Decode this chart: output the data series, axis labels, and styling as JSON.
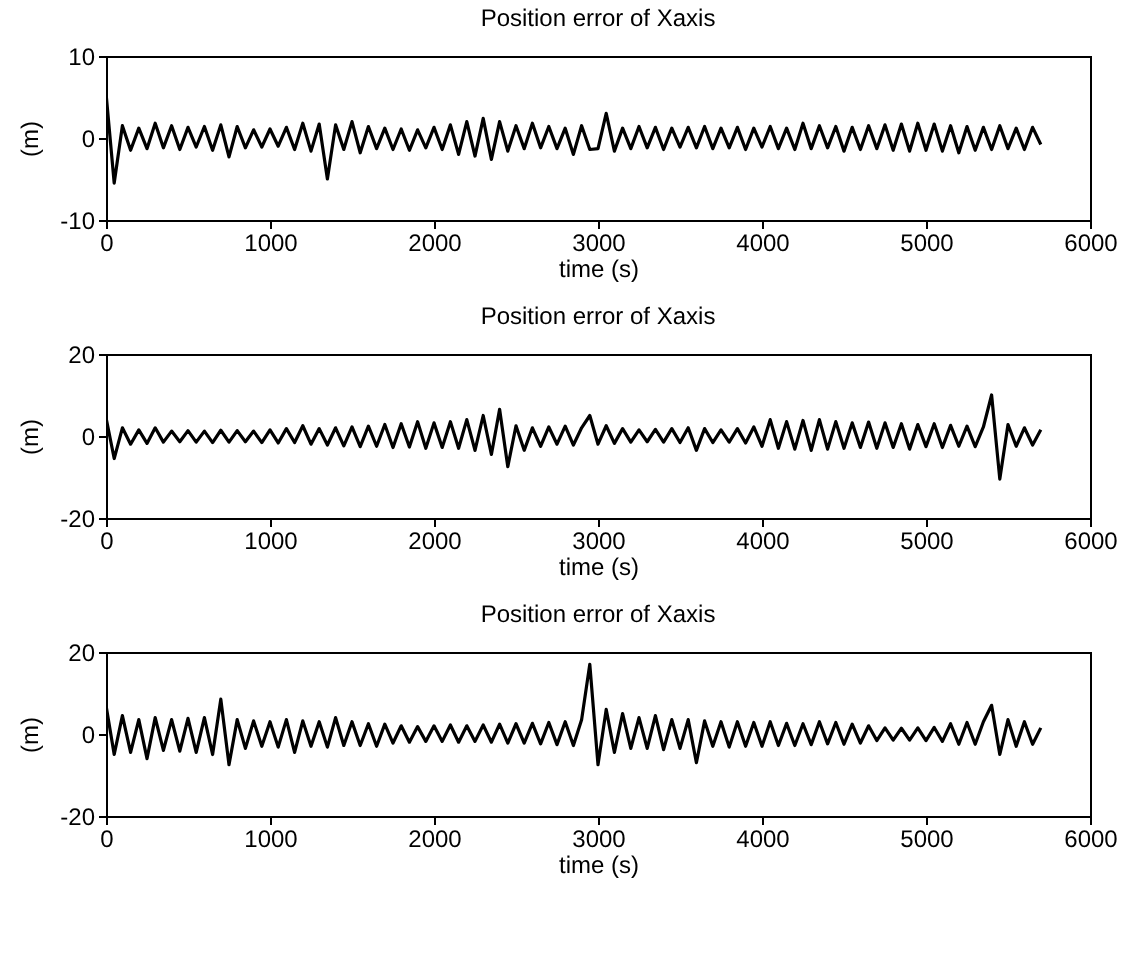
{
  "chart_data": [
    {
      "type": "line",
      "title": "Position error of Xaxis",
      "xlabel": "time (s)",
      "ylabel": "(m)",
      "xlim": [
        0,
        6000
      ],
      "xticks": [
        0,
        1000,
        2000,
        3000,
        4000,
        5000,
        6000
      ],
      "ylim": [
        -10,
        10
      ],
      "yticks": [
        -10,
        0,
        10
      ],
      "grid": false,
      "x": [
        0,
        50,
        100,
        150,
        200,
        250,
        300,
        350,
        400,
        450,
        500,
        550,
        600,
        650,
        700,
        750,
        800,
        850,
        900,
        950,
        1000,
        1050,
        1100,
        1150,
        1200,
        1250,
        1300,
        1350,
        1400,
        1450,
        1500,
        1550,
        1600,
        1650,
        1700,
        1750,
        1800,
        1850,
        1900,
        1950,
        2000,
        2050,
        2100,
        2150,
        2200,
        2250,
        2300,
        2350,
        2400,
        2450,
        2500,
        2550,
        2600,
        2650,
        2700,
        2750,
        2800,
        2850,
        2900,
        2950,
        3000,
        3050,
        3100,
        3150,
        3200,
        3250,
        3300,
        3350,
        3400,
        3450,
        3500,
        3550,
        3600,
        3650,
        3700,
        3750,
        3800,
        3850,
        3900,
        3950,
        4000,
        4050,
        4100,
        4150,
        4200,
        4250,
        4300,
        4350,
        4400,
        4450,
        4500,
        4550,
        4600,
        4650,
        4700,
        4750,
        4800,
        4850,
        4900,
        4950,
        5000,
        5050,
        5100,
        5150,
        5200,
        5250,
        5300,
        5350,
        5400,
        5450,
        5500,
        5550,
        5600,
        5650,
        5700
      ],
      "series": [
        {
          "color": "#000000",
          "values": [
            5.5,
            -5.5,
            1.5,
            -1.5,
            1.2,
            -1.3,
            1.8,
            -1.2,
            1.5,
            -1.4,
            1.3,
            -1.1,
            1.4,
            -1.5,
            1.6,
            -2.3,
            1.4,
            -1.2,
            1.0,
            -1.1,
            1.1,
            -1.0,
            1.3,
            -1.4,
            1.8,
            -1.6,
            1.7,
            -5.0,
            1.6,
            -1.4,
            2.0,
            -1.8,
            1.4,
            -1.3,
            1.2,
            -1.4,
            1.1,
            -1.5,
            1.0,
            -1.2,
            1.3,
            -1.4,
            1.6,
            -2.0,
            2.0,
            -2.2,
            2.4,
            -2.6,
            2.0,
            -1.6,
            1.5,
            -1.3,
            1.8,
            -1.2,
            1.4,
            -1.3,
            1.2,
            -2.0,
            1.5,
            -1.4,
            -1.3,
            3.0,
            -1.6,
            1.2,
            -1.3,
            1.4,
            -1.2,
            1.3,
            -1.4,
            1.2,
            -1.1,
            1.3,
            -1.2,
            1.4,
            -1.3,
            1.2,
            -1.2,
            1.3,
            -1.4,
            1.2,
            -1.1,
            1.4,
            -1.3,
            1.2,
            -1.4,
            1.8,
            -1.3,
            1.5,
            -1.2,
            1.4,
            -1.6,
            1.3,
            -1.4,
            1.5,
            -1.3,
            1.6,
            -1.5,
            1.7,
            -1.6,
            1.8,
            -1.5,
            1.7,
            -1.6,
            1.5,
            -1.8,
            1.4,
            -1.5,
            1.3,
            -1.4,
            1.5,
            -1.3,
            1.2,
            -1.4,
            1.3,
            -0.8
          ]
        }
      ]
    },
    {
      "type": "line",
      "title": "Position error of Xaxis",
      "xlabel": "time (s)",
      "ylabel": "(m)",
      "xlim": [
        0,
        6000
      ],
      "xticks": [
        0,
        1000,
        2000,
        3000,
        4000,
        5000,
        6000
      ],
      "ylim": [
        -20,
        20
      ],
      "yticks": [
        -20,
        0,
        20
      ],
      "grid": false,
      "x": [
        0,
        50,
        100,
        150,
        200,
        250,
        300,
        350,
        400,
        450,
        500,
        550,
        600,
        650,
        700,
        750,
        800,
        850,
        900,
        950,
        1000,
        1050,
        1100,
        1150,
        1200,
        1250,
        1300,
        1350,
        1400,
        1450,
        1500,
        1550,
        1600,
        1650,
        1700,
        1750,
        1800,
        1850,
        1900,
        1950,
        2000,
        2050,
        2100,
        2150,
        2200,
        2250,
        2300,
        2350,
        2400,
        2450,
        2500,
        2550,
        2600,
        2650,
        2700,
        2750,
        2800,
        2850,
        2900,
        2950,
        3000,
        3050,
        3100,
        3150,
        3200,
        3250,
        3300,
        3350,
        3400,
        3450,
        3500,
        3550,
        3600,
        3650,
        3700,
        3750,
        3800,
        3850,
        3900,
        3950,
        4000,
        4050,
        4100,
        4150,
        4200,
        4250,
        4300,
        4350,
        4400,
        4450,
        4500,
        4550,
        4600,
        4650,
        4700,
        4750,
        4800,
        4850,
        4900,
        4950,
        5000,
        5050,
        5100,
        5150,
        5200,
        5250,
        5300,
        5350,
        5400,
        5450,
        5500,
        5550,
        5600,
        5650,
        5700
      ],
      "series": [
        {
          "color": "#000000",
          "values": [
            4.5,
            -5.5,
            2.0,
            -2.0,
            1.5,
            -1.8,
            2.0,
            -1.5,
            1.2,
            -1.4,
            1.3,
            -1.5,
            1.2,
            -1.6,
            1.4,
            -1.5,
            1.3,
            -1.4,
            1.2,
            -1.6,
            1.5,
            -1.7,
            1.8,
            -1.6,
            2.5,
            -2.0,
            1.8,
            -2.2,
            2.0,
            -2.4,
            2.2,
            -2.6,
            2.4,
            -2.5,
            2.8,
            -2.8,
            3.0,
            -2.7,
            3.5,
            -3.0,
            3.2,
            -2.8,
            3.5,
            -3.0,
            4.0,
            -3.5,
            5.0,
            -4.5,
            6.5,
            -7.5,
            2.5,
            -3.5,
            2.0,
            -2.5,
            2.2,
            -2.0,
            2.4,
            -2.2,
            2.0,
            5.0,
            -2.0,
            2.5,
            -1.8,
            1.8,
            -1.5,
            1.5,
            -1.4,
            1.6,
            -1.5,
            1.8,
            -1.6,
            2.0,
            -3.5,
            1.8,
            -1.6,
            1.5,
            -1.5,
            1.8,
            -1.7,
            2.2,
            -2.5,
            4.0,
            -3.0,
            3.5,
            -3.2,
            3.8,
            -3.5,
            4.0,
            -3.2,
            3.5,
            -3.0,
            3.2,
            -2.8,
            3.4,
            -3.0,
            3.2,
            -2.8,
            3.0,
            -3.2,
            2.8,
            -2.6,
            3.0,
            -2.8,
            2.6,
            -2.5,
            2.4,
            -2.6,
            2.2,
            10.0,
            -10.5,
            2.8,
            -2.5,
            2.0,
            -2.2,
            1.5
          ]
        }
      ]
    },
    {
      "type": "line",
      "title": "Position error of Xaxis",
      "xlabel": "time (s)",
      "ylabel": "(m)",
      "xlim": [
        0,
        6000
      ],
      "xticks": [
        0,
        1000,
        2000,
        3000,
        4000,
        5000,
        6000
      ],
      "ylim": [
        -20,
        20
      ],
      "yticks": [
        -20,
        0,
        20
      ],
      "grid": false,
      "x": [
        0,
        50,
        100,
        150,
        200,
        250,
        300,
        350,
        400,
        450,
        500,
        550,
        600,
        650,
        700,
        750,
        800,
        850,
        900,
        950,
        1000,
        1050,
        1100,
        1150,
        1200,
        1250,
        1300,
        1350,
        1400,
        1450,
        1500,
        1550,
        1600,
        1650,
        1700,
        1750,
        1800,
        1850,
        1900,
        1950,
        2000,
        2050,
        2100,
        2150,
        2200,
        2250,
        2300,
        2350,
        2400,
        2450,
        2500,
        2550,
        2600,
        2650,
        2700,
        2750,
        2800,
        2850,
        2900,
        2950,
        3000,
        3050,
        3100,
        3150,
        3200,
        3250,
        3300,
        3350,
        3400,
        3450,
        3500,
        3550,
        3600,
        3650,
        3700,
        3750,
        3800,
        3850,
        3900,
        3950,
        4000,
        4050,
        4100,
        4150,
        4200,
        4250,
        4300,
        4350,
        4400,
        4450,
        4500,
        4550,
        4600,
        4650,
        4700,
        4750,
        4800,
        4850,
        4900,
        4950,
        5000,
        5050,
        5100,
        5150,
        5200,
        5250,
        5300,
        5350,
        5400,
        5450,
        5500,
        5550,
        5600,
        5650,
        5700
      ],
      "series": [
        {
          "color": "#000000",
          "values": [
            7.0,
            -5.0,
            4.5,
            -4.5,
            3.5,
            -6.0,
            4.0,
            -4.0,
            3.5,
            -4.2,
            3.8,
            -4.5,
            4.0,
            -5.0,
            8.5,
            -7.5,
            3.5,
            -3.5,
            3.2,
            -3.0,
            3.0,
            -3.2,
            3.5,
            -4.5,
            3.2,
            -3.0,
            3.0,
            -3.2,
            4.0,
            -2.8,
            3.0,
            -2.8,
            2.5,
            -3.0,
            2.4,
            -2.2,
            2.0,
            -2.0,
            1.8,
            -1.8,
            2.0,
            -1.8,
            2.2,
            -2.0,
            2.0,
            -1.8,
            2.2,
            -2.0,
            2.4,
            -2.2,
            2.5,
            -2.2,
            2.6,
            -2.4,
            2.8,
            -2.6,
            3.0,
            -2.8,
            3.5,
            17.0,
            -7.5,
            6.0,
            -4.5,
            5.0,
            -3.5,
            4.0,
            -3.5,
            4.5,
            -3.8,
            3.5,
            -3.5,
            3.5,
            -7.0,
            3.2,
            -3.0,
            3.0,
            -3.2,
            3.0,
            -3.0,
            2.8,
            -3.0,
            3.0,
            -2.8,
            2.6,
            -2.8,
            2.5,
            -2.6,
            3.0,
            -2.4,
            2.8,
            -2.5,
            2.4,
            -2.2,
            2.0,
            -1.6,
            1.5,
            -1.5,
            1.4,
            -1.5,
            1.5,
            -1.6,
            1.6,
            -1.8,
            2.5,
            -2.5,
            2.8,
            -2.5,
            3.0,
            7.0,
            -5.0,
            3.5,
            -3.0,
            3.0,
            -2.5,
            1.5
          ]
        }
      ]
    }
  ]
}
